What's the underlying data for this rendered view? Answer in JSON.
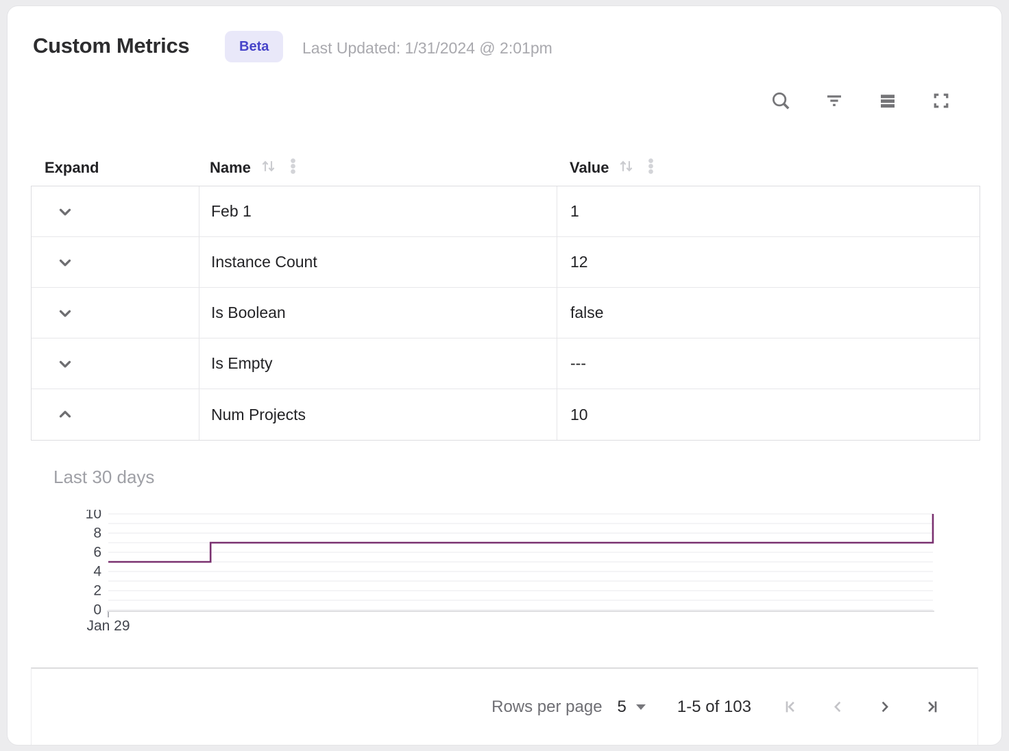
{
  "header": {
    "title": "Custom Metrics",
    "badge": "Beta",
    "last_updated": "Last Updated: 1/31/2024 @ 2:01pm"
  },
  "toolbar": {
    "icons": [
      {
        "name": "search"
      },
      {
        "name": "filter"
      },
      {
        "name": "density"
      },
      {
        "name": "fullscreen"
      }
    ]
  },
  "table": {
    "columns": [
      {
        "label": "Expand",
        "sortable": false
      },
      {
        "label": "Name",
        "sortable": true
      },
      {
        "label": "Value",
        "sortable": true
      }
    ],
    "rows": [
      {
        "name": "Feb 1",
        "value": "1",
        "expanded": false
      },
      {
        "name": "Instance Count",
        "value": "12",
        "expanded": false
      },
      {
        "name": "Is Boolean",
        "value": "false",
        "expanded": false
      },
      {
        "name": "Is Empty",
        "value": "---",
        "expanded": false
      },
      {
        "name": "Num Projects",
        "value": "10",
        "expanded": true
      }
    ]
  },
  "chart_data": {
    "type": "line",
    "subtype": "step",
    "title": "Last 30 days",
    "series": [
      {
        "name": "Num Projects",
        "points": [
          {
            "x": 0,
            "y": 5
          },
          {
            "x": 0.124,
            "y": 5
          },
          {
            "x": 0.124,
            "y": 7
          },
          {
            "x": 1,
            "y": 7
          },
          {
            "x": 1,
            "y": 10
          }
        ]
      }
    ],
    "ylim": [
      0,
      10
    ],
    "y_ticks": [
      0,
      2,
      4,
      6,
      8,
      10
    ],
    "grid_minor_step": 1,
    "x_tick_labels": [
      "Jan 29"
    ],
    "legend": "off",
    "line_color": "#7A3170"
  },
  "pagination": {
    "rows_per_page_label": "Rows per page",
    "rows_per_page_value": "5",
    "range_label": "1-5 of 103",
    "first_disabled": true,
    "prev_disabled": true,
    "next_disabled": false,
    "last_disabled": false
  },
  "colors": {
    "accent_line": "#7A3170",
    "badge_bg": "#E9E8F9",
    "badge_text": "#4744C9",
    "icon_gray": "#757578",
    "disabled_gray": "#C4C4C8",
    "grid_line": "#F1F1F3"
  }
}
